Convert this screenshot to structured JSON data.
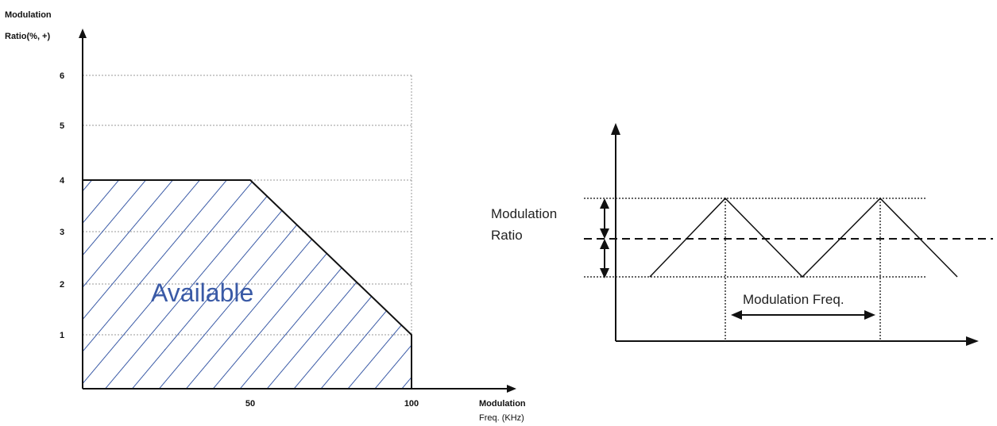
{
  "left_chart": {
    "y_title_line1": "Modulation",
    "y_title_line2": "Ratio(%, +)",
    "x_title_line1": "Modulation",
    "x_title_line2": "Freq. (KHz)",
    "y_ticks": [
      "1",
      "2",
      "3",
      "4",
      "5",
      "6"
    ],
    "x_ticks": [
      "50",
      "100"
    ],
    "region_label": "Available",
    "hatch_color": "#3a5aa6"
  },
  "chart_data": {
    "type": "area",
    "x": [
      0,
      50,
      100,
      100
    ],
    "y": [
      4,
      4,
      1,
      0
    ],
    "xlim": [
      0,
      100
    ],
    "ylim": [
      0,
      6
    ],
    "grid": true,
    "xlabel": "Modulation Freq. (KHz)",
    "ylabel": "Modulation Ratio(%, +)",
    "annotations": [
      "Available"
    ]
  },
  "right_diagram": {
    "ratio_label_line1": "Modulation",
    "ratio_label_line2": "Ratio",
    "freq_label": "Modulation Freq."
  }
}
